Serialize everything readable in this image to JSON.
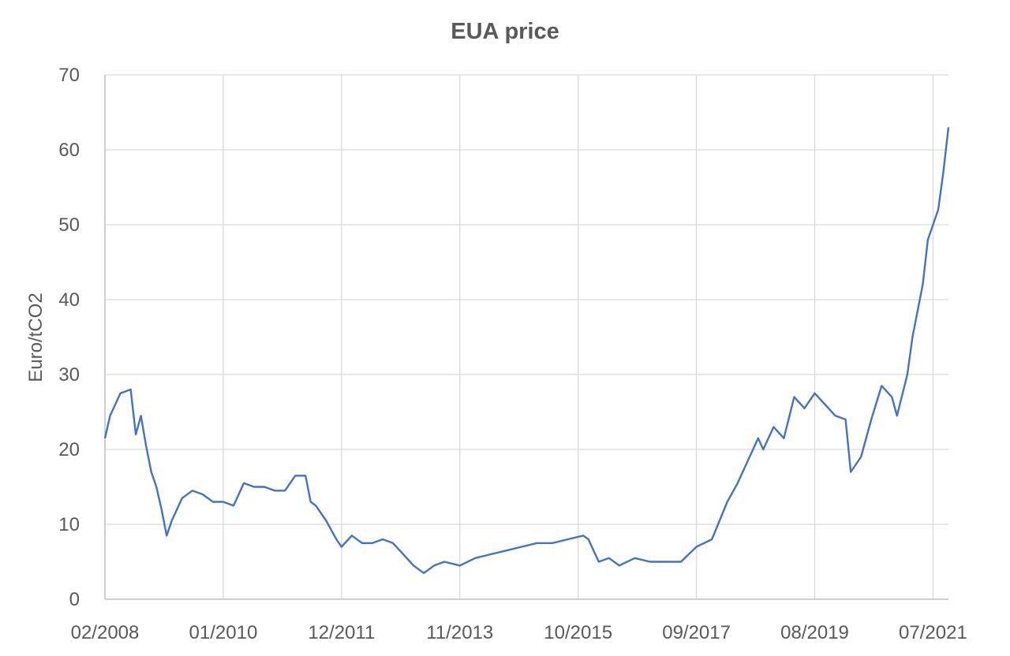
{
  "chart_data": {
    "type": "line",
    "title": "EUA price",
    "xlabel": "",
    "ylabel": "Euro/tCO2",
    "ylim": [
      0,
      70
    ],
    "yticks": [
      0,
      10,
      20,
      30,
      40,
      50,
      60,
      70
    ],
    "xticks": [
      "02/2008",
      "01/2010",
      "12/2011",
      "11/2013",
      "10/2015",
      "09/2017",
      "08/2019",
      "07/2021"
    ],
    "xrange": [
      "2008-02",
      "2021-10"
    ],
    "grid": true,
    "legend": "none",
    "color": "#4472c4",
    "series": [
      {
        "x": [
          "2008-02",
          "2008-03",
          "2008-05",
          "2008-07",
          "2008-08",
          "2008-09",
          "2008-10",
          "2008-11",
          "2008-12",
          "2009-01",
          "2009-02",
          "2009-03",
          "2009-05",
          "2009-07",
          "2009-09",
          "2009-11",
          "2010-01",
          "2010-03",
          "2010-05",
          "2010-07",
          "2010-09",
          "2010-11",
          "2011-01",
          "2011-03",
          "2011-05",
          "2011-06",
          "2011-07",
          "2011-09",
          "2011-11",
          "2011-12",
          "2012-02",
          "2012-04",
          "2012-06",
          "2012-08",
          "2012-10",
          "2012-12",
          "2013-02",
          "2013-04",
          "2013-06",
          "2013-08",
          "2013-11",
          "2014-02",
          "2014-05",
          "2014-08",
          "2014-11",
          "2015-02",
          "2015-05",
          "2015-08",
          "2015-11",
          "2015-12",
          "2016-02",
          "2016-04",
          "2016-06",
          "2016-09",
          "2016-12",
          "2017-03",
          "2017-06",
          "2017-09",
          "2017-12",
          "2018-03",
          "2018-05",
          "2018-07",
          "2018-09",
          "2018-10",
          "2018-12",
          "2019-02",
          "2019-04",
          "2019-06",
          "2019-08",
          "2019-10",
          "2019-12",
          "2020-02",
          "2020-03",
          "2020-05",
          "2020-07",
          "2020-09",
          "2020-11",
          "2020-12",
          "2021-02",
          "2021-03",
          "2021-05",
          "2021-06",
          "2021-08",
          "2021-09",
          "2021-10"
        ],
        "values": [
          21.5,
          24.5,
          27.5,
          28.0,
          22.0,
          24.5,
          20.5,
          17.0,
          15.0,
          12.0,
          8.5,
          10.5,
          13.5,
          14.5,
          14.0,
          13.0,
          13.0,
          12.5,
          15.5,
          15.0,
          15.0,
          14.5,
          14.5,
          16.5,
          16.5,
          13.0,
          12.5,
          10.5,
          8.0,
          7.0,
          8.5,
          7.5,
          7.5,
          8.0,
          7.5,
          6.0,
          4.5,
          3.5,
          4.5,
          5.0,
          4.5,
          5.5,
          6.0,
          6.5,
          7.0,
          7.5,
          7.5,
          8.0,
          8.5,
          8.0,
          5.0,
          5.5,
          4.5,
          5.5,
          5.0,
          5.0,
          5.0,
          7.0,
          8.0,
          13.0,
          15.5,
          18.5,
          21.5,
          20.0,
          23.0,
          21.5,
          27.0,
          25.5,
          27.5,
          26.0,
          24.5,
          24.0,
          17.0,
          19.0,
          24.0,
          28.5,
          27.0,
          24.5,
          30.0,
          35.0,
          42.0,
          48.0,
          52.0,
          57.0,
          63.0
        ]
      }
    ]
  }
}
